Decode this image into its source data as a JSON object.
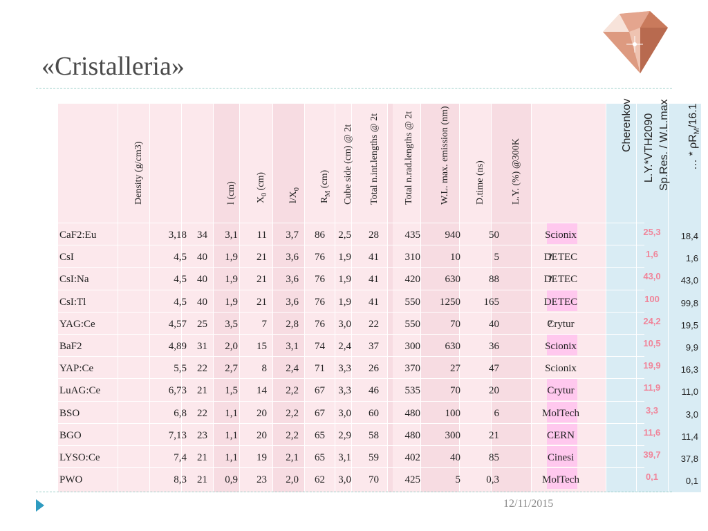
{
  "slide": {
    "title": "«Cristalleria»",
    "date": "12/11/2015"
  },
  "table": {
    "headers": {
      "density": "Density (g/cm3)",
      "l": "l (cm)",
      "x0": "X",
      "x0_sub": "0",
      "x0_unit": " (cm)",
      "lx0": "l/X",
      "lx0_sub": "0",
      "rm": "R",
      "rm_sub": "M",
      "rm_unit": " (cm)",
      "cube": "Cube side (cm) @ 2t",
      "int": "Total n.int.lengths @ 2t",
      "rad": "Total n.rad.lengths @ 2t",
      "wl": "W.L. max. emission (nm)",
      "dtime": "D.time (ns)",
      "ly": "L.Y. (%) @300K",
      "cherenkov": "Cherenkov",
      "lyvth_1": "L.Y.*VTH2090",
      "lyvth_2": "Sp.Res. / W.L.max",
      "rho_1": "… * ρR",
      "rho_sub": "M",
      "rho_2": "/16.1"
    },
    "rows": [
      {
        "name": "CaF2:Eu",
        "density": "3,18",
        "l": "34",
        "x0": "3,1",
        "lx0": "11",
        "rm": "3,7",
        "cube": "86",
        "int": "2,5",
        "rad": "28",
        "wl": "435",
        "dtime": "940",
        "ly": "50",
        "producer": "Scionix",
        "cherenkov": "",
        "lyvth": "25,3",
        "rho": "18,4"
      },
      {
        "name": "CsI",
        "density": "4,5",
        "l": "40",
        "x0": "1,9",
        "lx0": "21",
        "rm": "3,6",
        "cube": "76",
        "int": "1,9",
        "rad": "41",
        "wl": "310",
        "dtime": "10",
        "ly": "5",
        "producer": "DETEC",
        "cherenkov": "?",
        "lyvth": "1,6",
        "rho": "1,6"
      },
      {
        "name": "CsI:Na",
        "density": "4,5",
        "l": "40",
        "x0": "1,9",
        "lx0": "21",
        "rm": "3,6",
        "cube": "76",
        "int": "1,9",
        "rad": "41",
        "wl": "420",
        "dtime": "630",
        "ly": "88",
        "producer": "DETEC",
        "cherenkov": "?",
        "lyvth": "43,0",
        "rho": "43,0"
      },
      {
        "name": "CsI:Tl",
        "density": "4,5",
        "l": "40",
        "x0": "1,9",
        "lx0": "21",
        "rm": "3,6",
        "cube": "76",
        "int": "1,9",
        "rad": "41",
        "wl": "550",
        "dtime": "1250",
        "ly": "165",
        "producer": "DETEC",
        "cherenkov": "",
        "lyvth": "100",
        "rho": "99,8"
      },
      {
        "name": "YAG:Ce",
        "density": "4,57",
        "l": "25",
        "x0": "3,5",
        "lx0": "7",
        "rm": "2,8",
        "cube": "76",
        "int": "3,0",
        "rad": "22",
        "wl": "550",
        "dtime": "70",
        "ly": "40",
        "producer": "Crytur",
        "cherenkov": "?",
        "lyvth": "24,2",
        "rho": "19,5"
      },
      {
        "name": "BaF2",
        "density": "4,89",
        "l": "31",
        "x0": "2,0",
        "lx0": "15",
        "rm": "3,1",
        "cube": "74",
        "int": "2,4",
        "rad": "37",
        "wl": "300",
        "dtime": "630",
        "ly": "36",
        "producer": "Scionix",
        "cherenkov": "",
        "lyvth": "10,5",
        "rho": "9,9"
      },
      {
        "name": "YAP:Ce",
        "density": "5,5",
        "l": "22",
        "x0": "2,7",
        "lx0": "8",
        "rm": "2,4",
        "cube": "71",
        "int": "3,3",
        "rad": "26",
        "wl": "370",
        "dtime": "27",
        "ly": "47",
        "producer": "Scionix",
        "cherenkov": "",
        "lyvth": "19,9",
        "rho": "16,3"
      },
      {
        "name": "LuAG:Ce",
        "density": "6,73",
        "l": "21",
        "x0": "1,5",
        "lx0": "14",
        "rm": "2,2",
        "cube": "67",
        "int": "3,3",
        "rad": "46",
        "wl": "535",
        "dtime": "70",
        "ly": "20",
        "producer": "Crytur",
        "cherenkov": "",
        "lyvth": "11,9",
        "rho": "11,0"
      },
      {
        "name": "BSO",
        "density": "6,8",
        "l": "22",
        "x0": "1,1",
        "lx0": "20",
        "rm": "2,2",
        "cube": "67",
        "int": "3,0",
        "rad": "60",
        "wl": "480",
        "dtime": "100",
        "ly": "6",
        "producer": "MolTech",
        "cherenkov": "",
        "lyvth": "3,3",
        "rho": "3,0"
      },
      {
        "name": "BGO",
        "density": "7,13",
        "l": "23",
        "x0": "1,1",
        "lx0": "20",
        "rm": "2,2",
        "cube": "65",
        "int": "2,9",
        "rad": "58",
        "wl": "480",
        "dtime": "300",
        "ly": "21",
        "producer": "CERN",
        "cherenkov": "",
        "lyvth": "11,6",
        "rho": "11,4"
      },
      {
        "name": "LYSO:Ce",
        "density": "7,4",
        "l": "21",
        "x0": "1,1",
        "lx0": "19",
        "rm": "2,1",
        "cube": "65",
        "int": "3,1",
        "rad": "59",
        "wl": "402",
        "dtime": "40",
        "ly": "85",
        "producer": "Cinesi",
        "cherenkov": "",
        "lyvth": "39,7",
        "rho": "37,8"
      },
      {
        "name": "PWO",
        "density": "8,3",
        "l": "21",
        "x0": "0,9",
        "lx0": "23",
        "rm": "2,0",
        "cube": "62",
        "int": "3,0",
        "rad": "70",
        "wl": "425",
        "dtime": "5",
        "ly": "0,3",
        "producer": "MolTech",
        "cherenkov": "",
        "lyvth": "0,1",
        "rho": "0,1"
      }
    ],
    "cherenkov_highlight_rows": [
      0,
      3,
      5,
      7,
      8,
      9,
      10,
      11
    ],
    "colors": {
      "pink_light": "#fce8ec",
      "pink_dark": "#f7dce2",
      "blue": "#d9ecf4",
      "magenta": "#ffc8ee",
      "red_text": "#f0859a"
    }
  },
  "icons": {
    "logo": "crystal-diamond-logo",
    "bullet": "footer-triangle-icon"
  }
}
